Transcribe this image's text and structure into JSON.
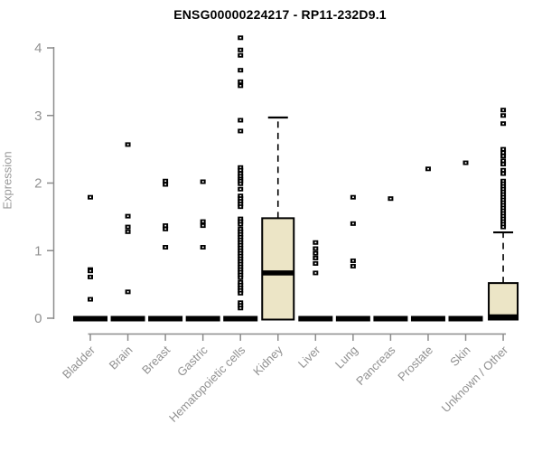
{
  "header": {
    "title": "ENSG00000224217 - RP11-232D9.1"
  },
  "chart_data": {
    "type": "boxplot",
    "title": "ENSG00000224217 - RP11-232D9.1",
    "xlabel": "",
    "ylabel": "Expression",
    "ylim": [
      0,
      4.2
    ],
    "yticks": [
      0,
      1,
      2,
      3,
      4
    ],
    "grid": false,
    "legend": "none",
    "colors": {
      "box_fill": "#ece5c6",
      "box_stroke": "#000000",
      "point": "#000000",
      "axis": "#8c8c8c",
      "tick_label": "#919191",
      "title": "#000000"
    },
    "categories": [
      "Bladder",
      "Brain",
      "Breast",
      "Gastric",
      "Hematopoietic cells",
      "Kidney",
      "Liver",
      "Lung",
      "Pancreas",
      "Prostate",
      "Skin",
      "Unknown / Other"
    ],
    "series": [
      {
        "category": "Bladder",
        "box": {
          "q1": 0,
          "median": 0,
          "q3": 0,
          "whisker_low": 0,
          "whisker_high": 0,
          "collapsed": true
        },
        "points": [
          1.79,
          0.72,
          0.7,
          0.61,
          0.28
        ]
      },
      {
        "category": "Brain",
        "box": {
          "q1": 0,
          "median": 0,
          "q3": 0,
          "whisker_low": 0,
          "whisker_high": 0,
          "collapsed": true
        },
        "points": [
          2.57,
          1.51,
          1.35,
          1.28,
          0.39
        ]
      },
      {
        "category": "Breast",
        "box": {
          "q1": 0,
          "median": 0,
          "q3": 0,
          "whisker_low": 0,
          "whisker_high": 0,
          "collapsed": true
        },
        "points": [
          2.03,
          1.98,
          1.37,
          1.32,
          1.05
        ]
      },
      {
        "category": "Gastric",
        "box": {
          "q1": 0,
          "median": 0,
          "q3": 0,
          "whisker_low": 0,
          "whisker_high": 0,
          "collapsed": true
        },
        "points": [
          2.02,
          1.43,
          1.37,
          1.05
        ]
      },
      {
        "category": "Hematopoietic cells",
        "box": {
          "q1": 0,
          "median": 0,
          "q3": 0,
          "whisker_low": 0,
          "whisker_high": 0,
          "collapsed": true
        },
        "points": [
          4.15,
          3.97,
          3.89,
          3.67,
          3.5,
          3.44,
          2.93,
          2.77,
          2.23,
          2.19,
          2.14,
          2.1,
          2.06,
          2.03,
          1.99,
          1.91,
          1.81,
          1.77,
          1.73,
          1.69,
          1.65,
          1.47,
          1.43,
          1.39,
          1.32,
          1.28,
          1.24,
          1.2,
          1.16,
          1.12,
          1.08,
          1.04,
          1.0,
          0.96,
          0.92,
          0.88,
          0.84,
          0.8,
          0.76,
          0.72,
          0.68,
          0.64,
          0.6,
          0.53,
          0.49,
          0.45,
          0.41,
          0.37,
          0.23,
          0.19,
          0.15
        ]
      },
      {
        "category": "Kidney",
        "box": {
          "q1": 0,
          "median": 0.67,
          "q3": 1.48,
          "whisker_low": 0,
          "whisker_high": 2.97,
          "collapsed": false
        },
        "points": []
      },
      {
        "category": "Liver",
        "box": {
          "q1": 0,
          "median": 0,
          "q3": 0,
          "whisker_low": 0,
          "whisker_high": 0,
          "collapsed": true
        },
        "points": [
          1.12,
          1.03,
          0.96,
          0.89,
          0.81,
          0.67
        ]
      },
      {
        "category": "Lung",
        "box": {
          "q1": 0,
          "median": 0,
          "q3": 0,
          "whisker_low": 0,
          "whisker_high": 0,
          "collapsed": true
        },
        "points": [
          1.79,
          1.4,
          0.85,
          0.77
        ]
      },
      {
        "category": "Pancreas",
        "box": {
          "q1": 0,
          "median": 0,
          "q3": 0,
          "whisker_low": 0,
          "whisker_high": 0,
          "collapsed": true
        },
        "points": [
          1.77
        ]
      },
      {
        "category": "Prostate",
        "box": {
          "q1": 0,
          "median": 0,
          "q3": 0,
          "whisker_low": 0,
          "whisker_high": 0,
          "collapsed": true
        },
        "points": [
          2.21
        ]
      },
      {
        "category": "Skin",
        "box": {
          "q1": 0,
          "median": 0,
          "q3": 0,
          "whisker_low": 0,
          "whisker_high": 0,
          "collapsed": true
        },
        "points": [
          2.3
        ]
      },
      {
        "category": "Unknown / Other",
        "box": {
          "q1": 0,
          "median": 0.02,
          "q3": 0.52,
          "whisker_low": 0,
          "whisker_high": 1.27,
          "collapsed": false
        },
        "points": [
          3.08,
          3.0,
          2.88,
          2.5,
          2.45,
          2.4,
          2.33,
          2.28,
          2.19,
          2.14,
          2.03,
          1.99,
          1.95,
          1.91,
          1.87,
          1.83,
          1.79,
          1.75,
          1.71,
          1.67,
          1.63,
          1.59,
          1.55,
          1.51,
          1.47,
          1.43,
          1.39,
          1.35
        ]
      }
    ]
  }
}
